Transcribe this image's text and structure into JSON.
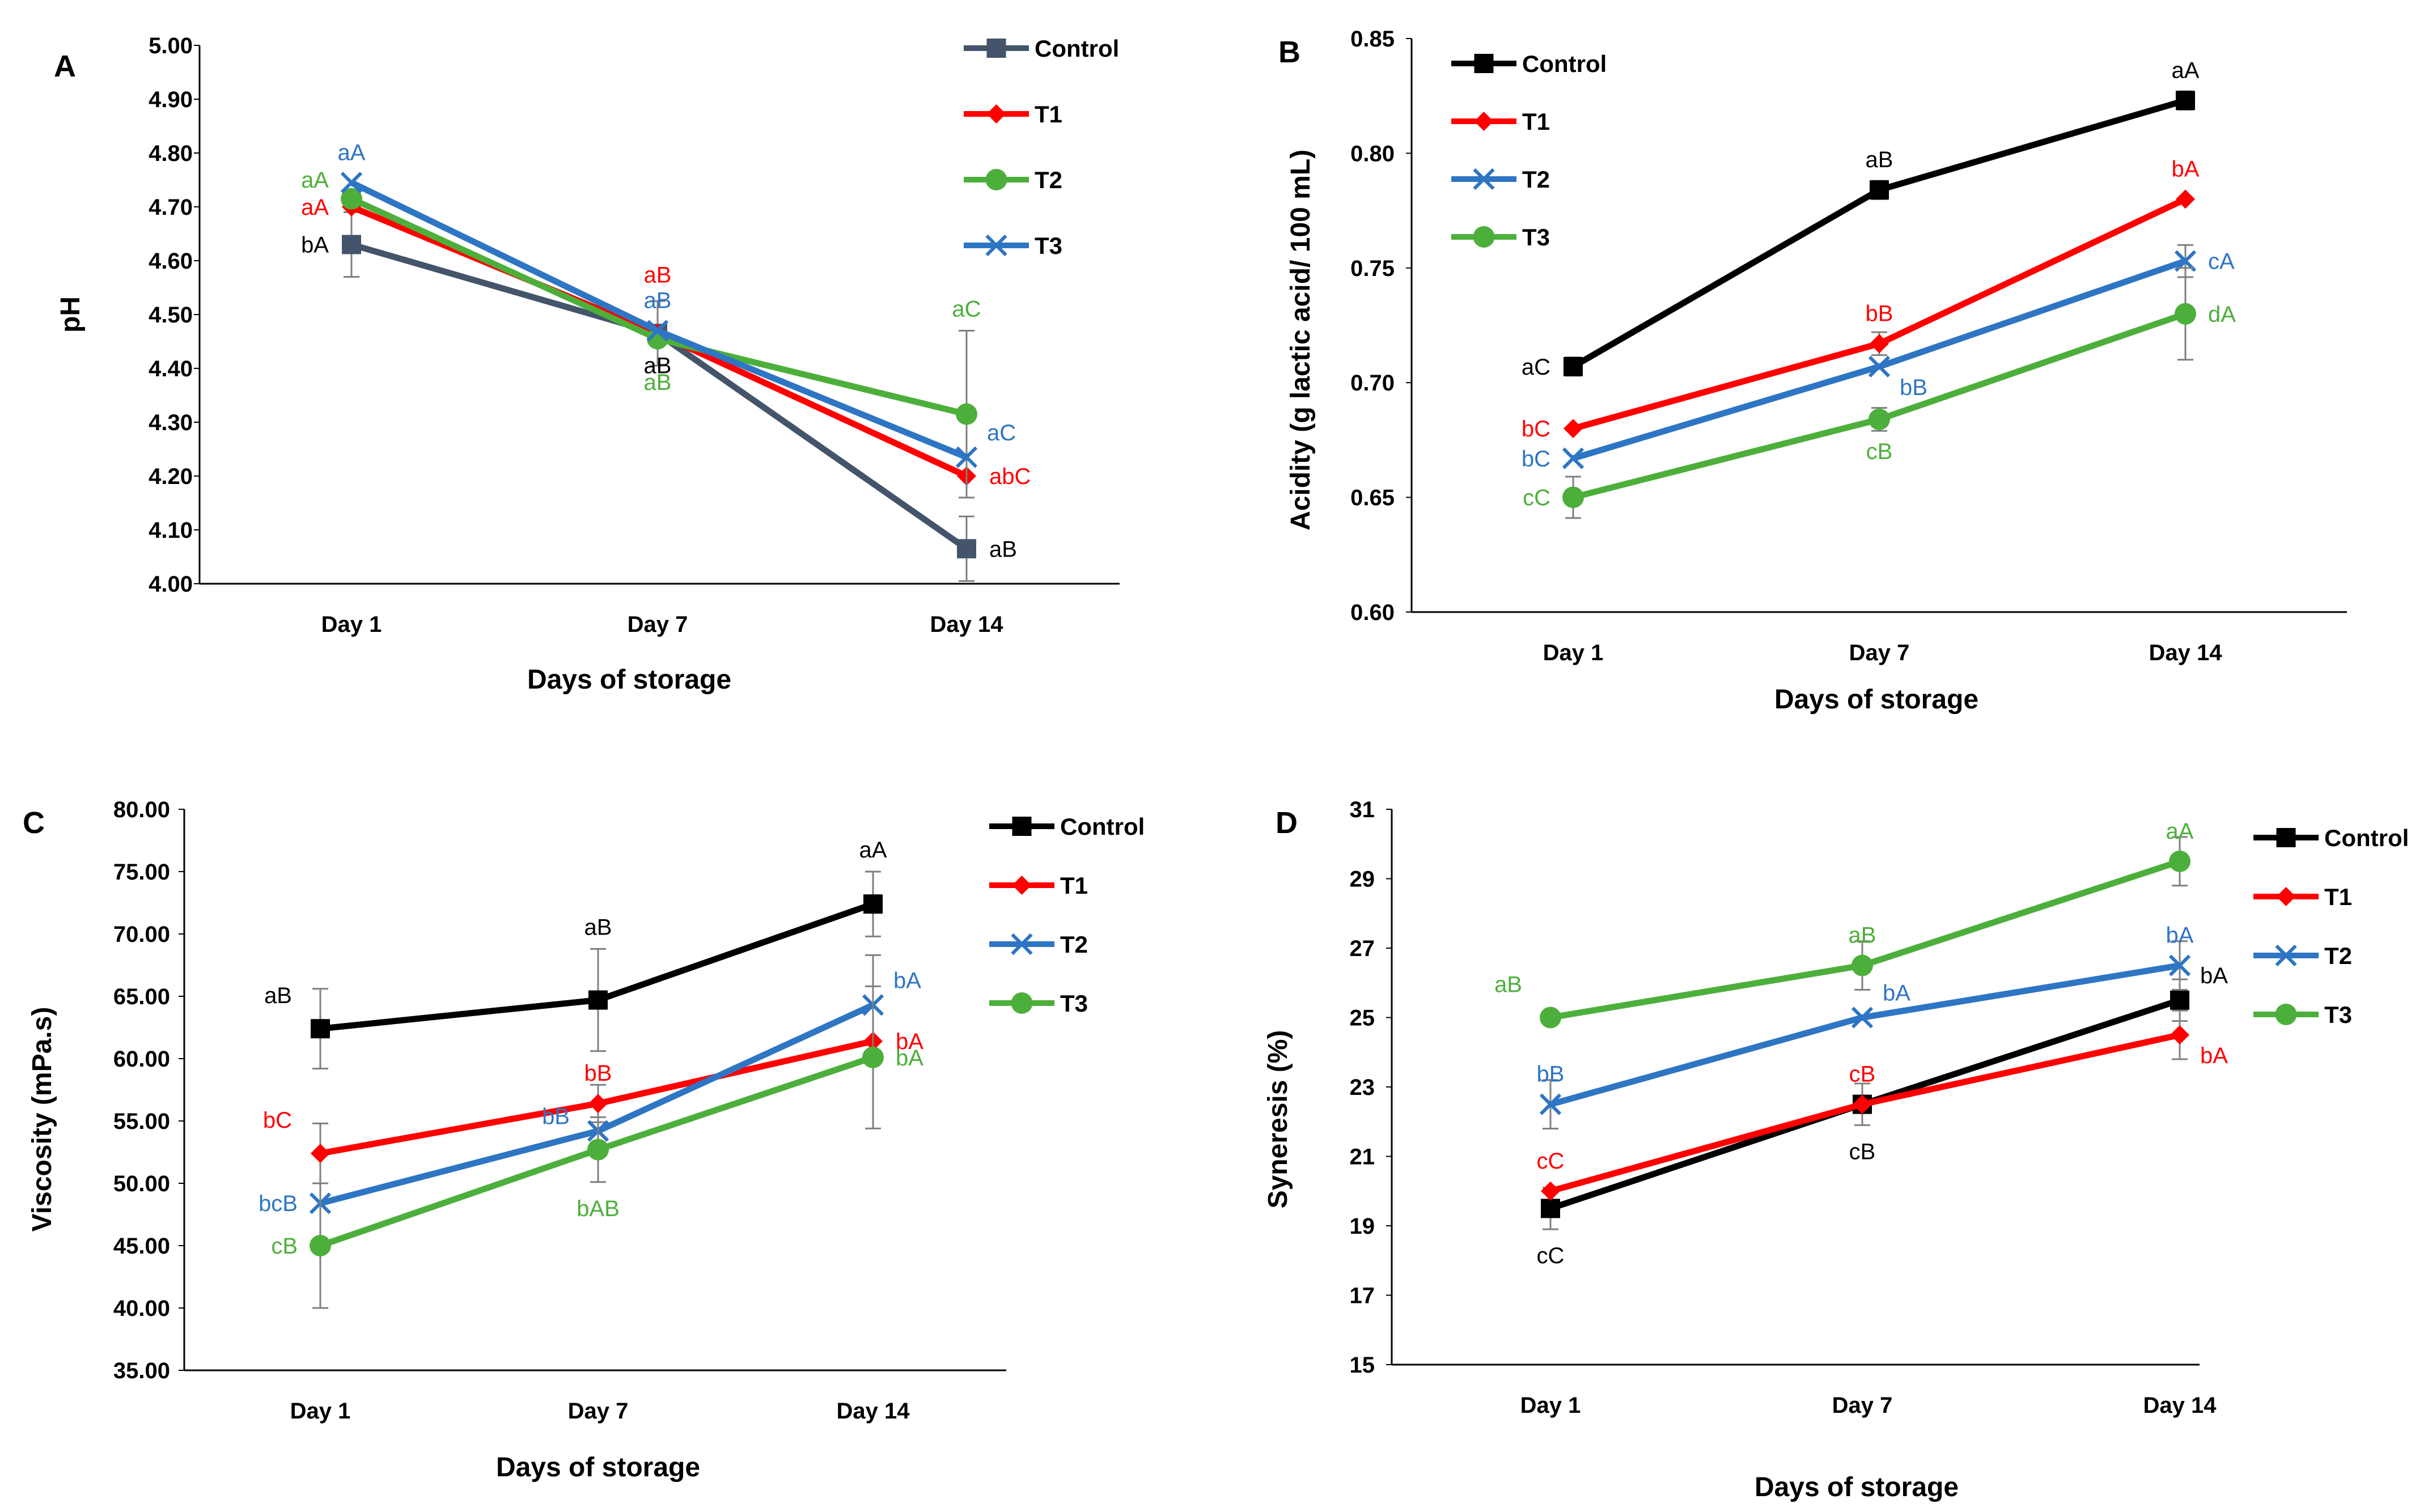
{
  "chart_data": [
    {
      "panel": "A",
      "type": "line",
      "categories": [
        "Day 1",
        "Day 7",
        "Day 14"
      ],
      "xlabel": "Days of storage",
      "ylabel": "pH",
      "ylim": [
        4.0,
        5.0
      ],
      "yticks": [
        4.0,
        4.1,
        4.2,
        4.3,
        4.4,
        4.5,
        4.6,
        4.7,
        4.8,
        4.9,
        5.0
      ],
      "ytick_decimals": 2,
      "legend_position": "top-right",
      "series": [
        {
          "name": "Control",
          "color": "#44546a",
          "marker": "square",
          "values": [
            4.63,
            4.465,
            4.065
          ],
          "errors": [
            0.06,
            0.06,
            0.06
          ],
          "labels": [
            "bA",
            "aB",
            "aB"
          ],
          "label_pos": [
            "left",
            "below",
            "right"
          ]
        },
        {
          "name": "T1",
          "color": "#ff0000",
          "marker": "diamond",
          "values": [
            4.7,
            4.465,
            4.2
          ],
          "errors": [
            0.0,
            0.0,
            0.0
          ],
          "labels": [
            "aA",
            "aB",
            "abC"
          ],
          "label_pos": [
            "left",
            "above2",
            "right"
          ]
        },
        {
          "name": "T2",
          "color": "#4daf3b",
          "marker": "circle",
          "values": [
            4.715,
            4.455,
            4.315
          ],
          "errors": [
            0.0,
            0.0,
            0.155
          ],
          "labels": [
            "aA",
            "aB",
            "aC"
          ],
          "label_pos": [
            "left2",
            "below2",
            "above-err"
          ]
        },
        {
          "name": "T3",
          "color": "#2e75c4",
          "marker": "x",
          "values": [
            4.745,
            4.47,
            4.235
          ],
          "errors": [
            0.0,
            0.0,
            0.0
          ],
          "labels": [
            "aA",
            "aB",
            "aC"
          ],
          "label_pos": [
            "above",
            "above",
            "right-up"
          ]
        }
      ]
    },
    {
      "panel": "B",
      "type": "line",
      "categories": [
        "Day 1",
        "Day 7",
        "Day 14"
      ],
      "xlabel": "Days of storage",
      "ylabel": "Acidity (g lactic acid/ 100 mL)",
      "ylim": [
        0.6,
        0.85
      ],
      "yticks": [
        0.6,
        0.65,
        0.7,
        0.75,
        0.8,
        0.85
      ],
      "ytick_decimals": 2,
      "legend_position": "top-left",
      "series": [
        {
          "name": "Control",
          "color": "#000000",
          "marker": "square",
          "values": [
            0.707,
            0.784,
            0.823
          ],
          "errors": [
            0.004,
            0.004,
            0.004
          ],
          "labels": [
            "aC",
            "aB",
            "aA"
          ],
          "label_pos": [
            "left",
            "above",
            "above"
          ]
        },
        {
          "name": "T1",
          "color": "#ff0000",
          "marker": "diamond",
          "values": [
            0.68,
            0.717,
            0.78
          ],
          "errors": [
            0.0,
            0.005,
            0.0
          ],
          "labels": [
            "bC",
            "bB",
            "bA"
          ],
          "label_pos": [
            "left",
            "above",
            "above"
          ]
        },
        {
          "name": "T2",
          "color": "#2e75c4",
          "marker": "x",
          "values": [
            0.667,
            0.707,
            0.753
          ],
          "errors": [
            0.0,
            0.0,
            0.007
          ],
          "labels": [
            "bC",
            "bB",
            "cA"
          ],
          "label_pos": [
            "left",
            "right-down",
            "right"
          ]
        },
        {
          "name": "T3",
          "color": "#4daf3b",
          "marker": "circle",
          "values": [
            0.65,
            0.684,
            0.73
          ],
          "errors": [
            0.009,
            0.005,
            0.02
          ],
          "labels": [
            "cC",
            "cB",
            "dA"
          ],
          "label_pos": [
            "left",
            "below",
            "right"
          ]
        }
      ]
    },
    {
      "panel": "C",
      "type": "line",
      "categories": [
        "Day 1",
        "Day 7",
        "Day 14"
      ],
      "xlabel": "Days of storage",
      "ylabel": "Viscosity (mPa.s)",
      "ylim": [
        35,
        80
      ],
      "yticks": [
        35,
        40,
        45,
        50,
        55,
        60,
        65,
        70,
        75,
        80
      ],
      "ytick_decimals": 2,
      "legend_position": "top-right",
      "series": [
        {
          "name": "Control",
          "color": "#000000",
          "marker": "square",
          "values": [
            62.4,
            64.7,
            72.4
          ],
          "errors": [
            3.2,
            4.1,
            2.6
          ],
          "labels": [
            "aB",
            "aB",
            "aA"
          ],
          "label_pos": [
            "above-left",
            "above-err",
            "above-err"
          ]
        },
        {
          "name": "T1",
          "color": "#ff0000",
          "marker": "diamond",
          "values": [
            52.4,
            56.4,
            61.4
          ],
          "errors": [
            2.4,
            1.5,
            0.0
          ],
          "labels": [
            "bC",
            "bB",
            "bA"
          ],
          "label_pos": [
            "above-left",
            "above",
            "right"
          ]
        },
        {
          "name": "T2",
          "color": "#2e75c4",
          "marker": "x",
          "values": [
            48.4,
            54.2,
            64.3
          ],
          "errors": [
            0.0,
            0.0,
            4.0
          ],
          "labels": [
            "bcB",
            "bB",
            "bA"
          ],
          "label_pos": [
            "left",
            "left-up",
            "right-up"
          ]
        },
        {
          "name": "T3",
          "color": "#4daf3b",
          "marker": "circle",
          "values": [
            45.0,
            52.7,
            60.1
          ],
          "errors": [
            5.0,
            2.6,
            5.7
          ],
          "labels": [
            "cB",
            "bAB",
            "bA"
          ],
          "label_pos": [
            "left",
            "below-err",
            "right"
          ]
        }
      ]
    },
    {
      "panel": "D",
      "type": "line",
      "categories": [
        "Day 1",
        "Day 7",
        "Day 14"
      ],
      "xlabel": "Days of storage",
      "ylabel": "Syneresis (%)",
      "ylim": [
        15,
        31
      ],
      "yticks": [
        15,
        17,
        19,
        21,
        23,
        25,
        27,
        29,
        31
      ],
      "ytick_decimals": 0,
      "legend_position": "top-right",
      "series": [
        {
          "name": "Control",
          "color": "#000000",
          "marker": "square",
          "values": [
            19.5,
            22.5,
            25.5
          ],
          "errors": [
            0.6,
            0.6,
            0.6
          ],
          "labels": [
            "cC",
            "cB",
            "bA"
          ],
          "label_pos": [
            "below-err",
            "below-err",
            "right-up"
          ]
        },
        {
          "name": "T1",
          "color": "#ff0000",
          "marker": "diamond",
          "values": [
            20.0,
            22.5,
            24.5
          ],
          "errors": [
            0.0,
            0.0,
            0.7
          ],
          "labels": [
            "cC",
            "cB",
            "bA"
          ],
          "label_pos": [
            "above",
            "above",
            "right-down"
          ]
        },
        {
          "name": "T2",
          "color": "#2e75c4",
          "marker": "x",
          "values": [
            22.5,
            25.0,
            26.5
          ],
          "errors": [
            0.7,
            0.0,
            0.7
          ],
          "labels": [
            "bB",
            "bA",
            "bA"
          ],
          "label_pos": [
            "above",
            "right-up",
            "above"
          ]
        },
        {
          "name": "T3",
          "color": "#4daf3b",
          "marker": "circle",
          "values": [
            25.0,
            26.5,
            29.5
          ],
          "errors": [
            0.0,
            0.7,
            0.7
          ],
          "labels": [
            "aB",
            "aB",
            "aA"
          ],
          "label_pos": [
            "above-left",
            "above",
            "above"
          ]
        }
      ]
    }
  ]
}
